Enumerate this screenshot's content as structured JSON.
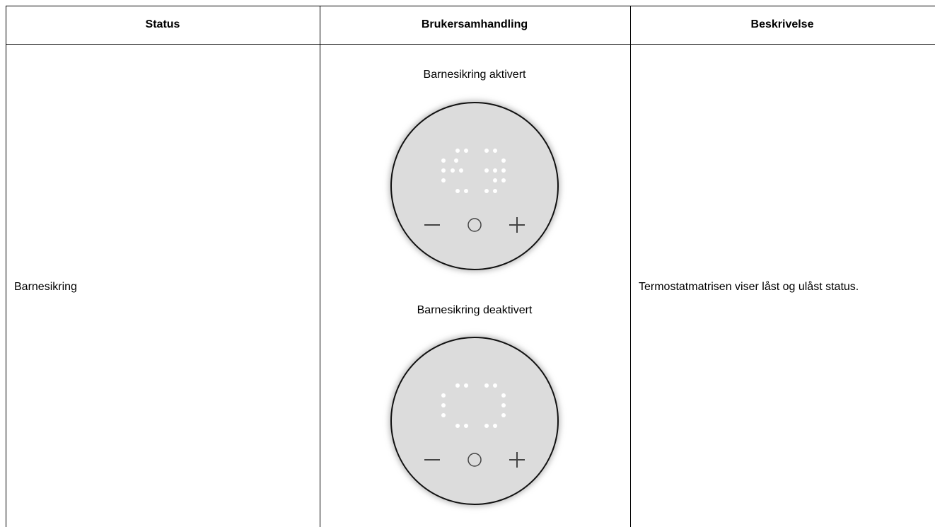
{
  "table": {
    "headers": [
      "Status",
      "Brukersamhandling",
      "Beskrivelse"
    ],
    "rows": [
      {
        "status": "Barnesikring",
        "interaction": [
          "Barnesikring aktivert",
          "Barnesikring deaktivert"
        ],
        "description": "Termostatmatrisen viser låst og ulåst status."
      }
    ]
  }
}
